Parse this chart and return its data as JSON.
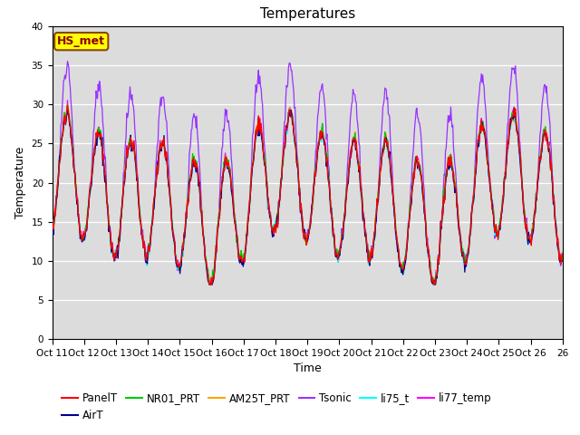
{
  "title": "Temperatures",
  "xlabel": "Time",
  "ylabel": "Temperature",
  "ylim": [
    0,
    40
  ],
  "yticks": [
    0,
    5,
    10,
    15,
    20,
    25,
    30,
    35,
    40
  ],
  "xlabels": [
    "Oct 11",
    "Oct 12",
    "Oct 13",
    "Oct 14",
    "Oct 15",
    "Oct 16",
    "Oct 17",
    "Oct 18",
    "Oct 19",
    "Oct 20",
    "Oct 21",
    "Oct 22",
    "Oct 23",
    "Oct 24",
    "Oct 25",
    "Oct 26"
  ],
  "annotation_text": "HS_met",
  "annotation_bg": "#FFFF00",
  "annotation_text_color": "#8B0000",
  "annotation_border_color": "#8B4513",
  "series_colors": {
    "PanelT": "#FF0000",
    "AirT": "#00008B",
    "NR01_PRT": "#00CC00",
    "AM25T_PRT": "#FFA500",
    "Tsonic": "#9933FF",
    "li75_t": "#00FFFF",
    "li77_temp": "#FF00FF"
  },
  "bg_color": "#DCDCDC",
  "title_fontsize": 11,
  "axis_fontsize": 9,
  "legend_fontsize": 8.5,
  "n_days": 16
}
